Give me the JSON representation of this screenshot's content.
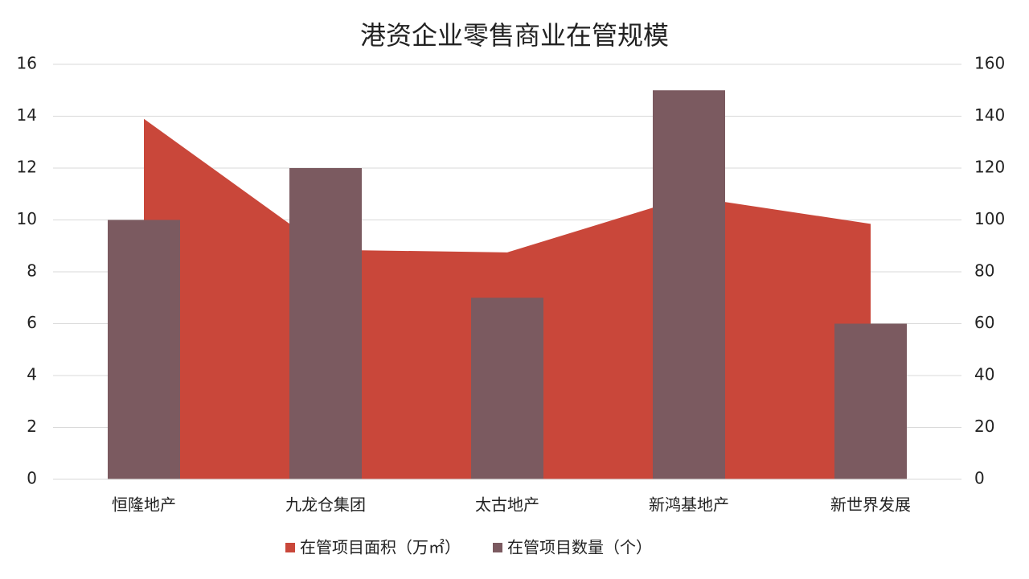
{
  "chart_data": {
    "type": "combo",
    "title": "港资企业零售商业在管规模",
    "categories": [
      "恒隆地产",
      "九龙仓集团",
      "太古地产",
      "新鸿基地产",
      "新世界发展"
    ],
    "series": [
      {
        "name": "在管项目面积（万㎡）",
        "type": "area",
        "color": "#c9473a",
        "values": [
          13.9,
          8.85,
          8.75,
          10.9,
          9.85
        ]
      },
      {
        "name": "在管项目数量（个）",
        "type": "bar",
        "axis": "y2",
        "color": "#7b5a60",
        "values": [
          100,
          120,
          70,
          150,
          60
        ]
      }
    ],
    "ylim": [
      0,
      16
    ],
    "yticks": [
      0,
      2,
      4,
      6,
      8,
      10,
      12,
      14,
      16
    ],
    "y2lim": [
      0,
      160
    ],
    "y2ticks": [
      0,
      20,
      40,
      60,
      80,
      100,
      120,
      140,
      160
    ],
    "grid": true,
    "legend": "bottom"
  }
}
